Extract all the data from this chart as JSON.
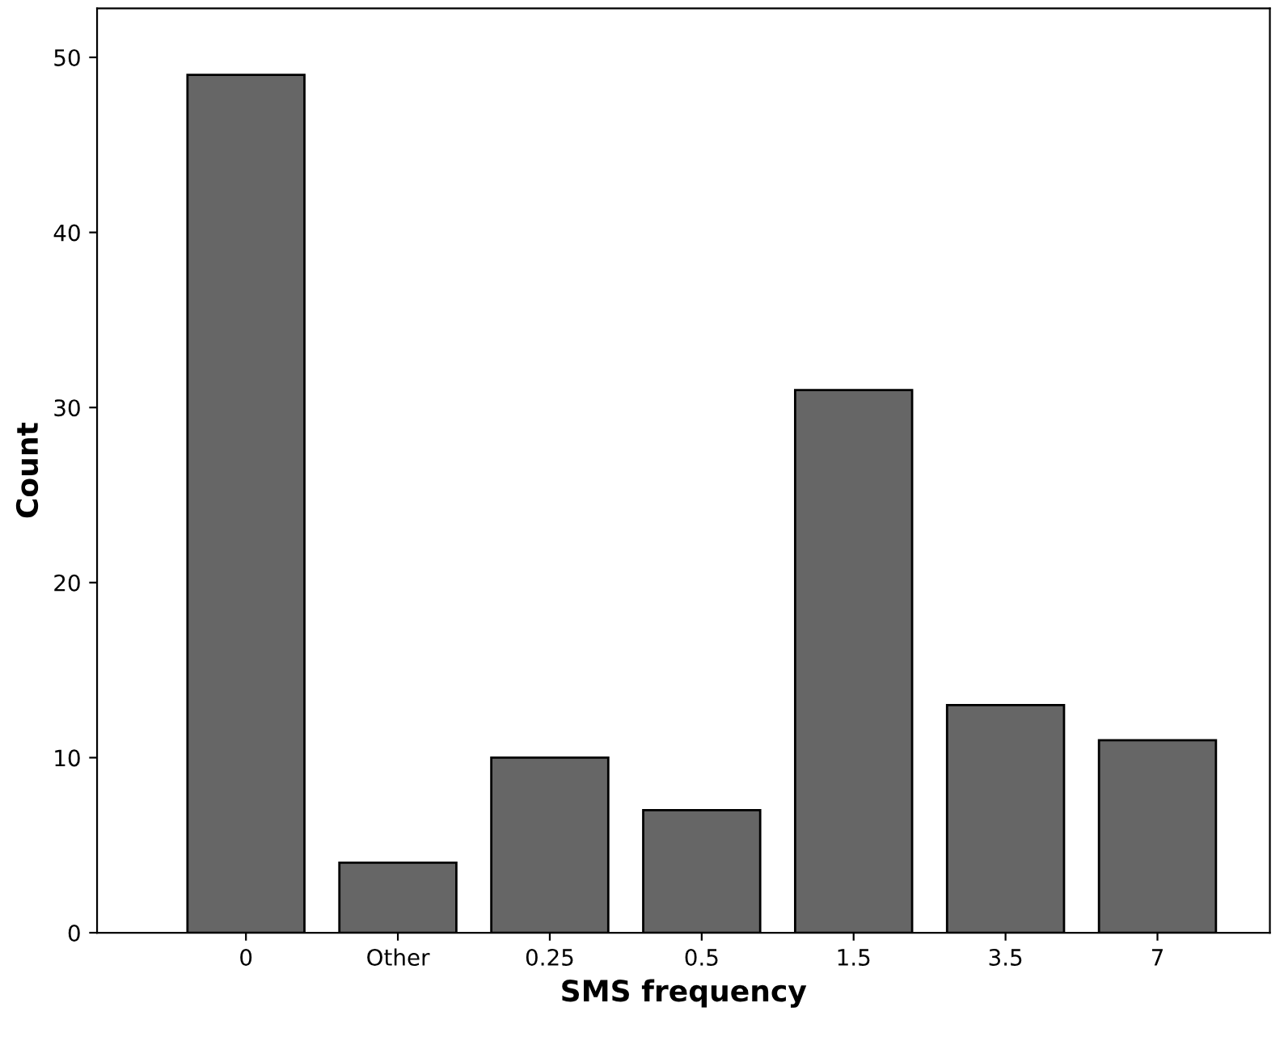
{
  "chart_data": {
    "type": "bar",
    "xlabel": "SMS frequency",
    "ylabel": "Count",
    "categories": [
      "0",
      "Other",
      "0.25",
      "0.5",
      "1.5",
      "3.5",
      "7"
    ],
    "values": [
      49,
      4,
      10,
      7,
      31,
      13,
      11
    ],
    "color": "#666666",
    "ylim": [
      0,
      52.8
    ],
    "yticks": [
      0,
      10,
      20,
      30,
      40,
      50
    ],
    "grid": false
  }
}
